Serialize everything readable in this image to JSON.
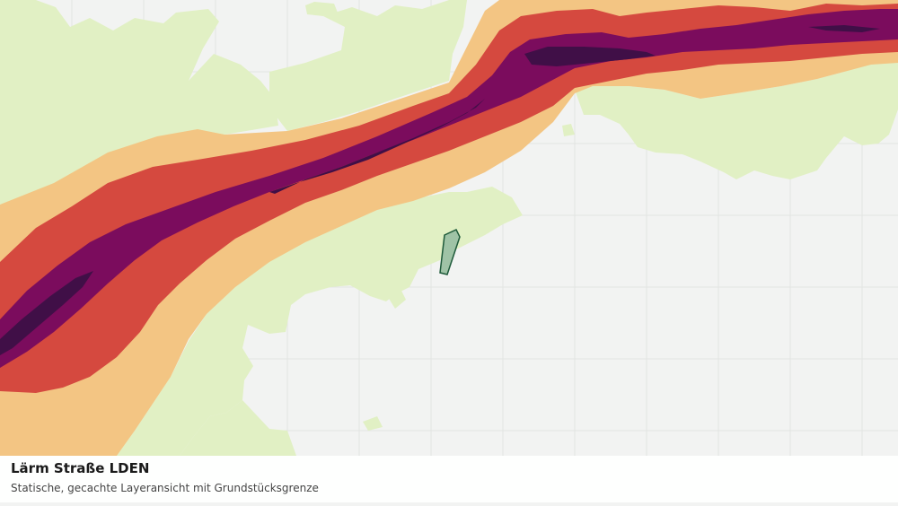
{
  "map": {
    "layer_title": "Lärm Straße LDEN",
    "layer_subtitle": "Statische, gecachte Layeransicht mit Grundstücksgrenze",
    "colors": {
      "background": "#f2f3f2",
      "green_space": "#e1f0c4",
      "grid": "#e2e4e2",
      "noise_low": "#f3c583",
      "noise_medium": "#d5493f",
      "noise_high": "#7b0c5d",
      "noise_very_high": "#400f47",
      "parcel_fill": "#9fc3a6",
      "parcel_stroke": "#1e5a3a"
    },
    "icons": {
      "parcel": "parcel-boundary-outline"
    }
  }
}
